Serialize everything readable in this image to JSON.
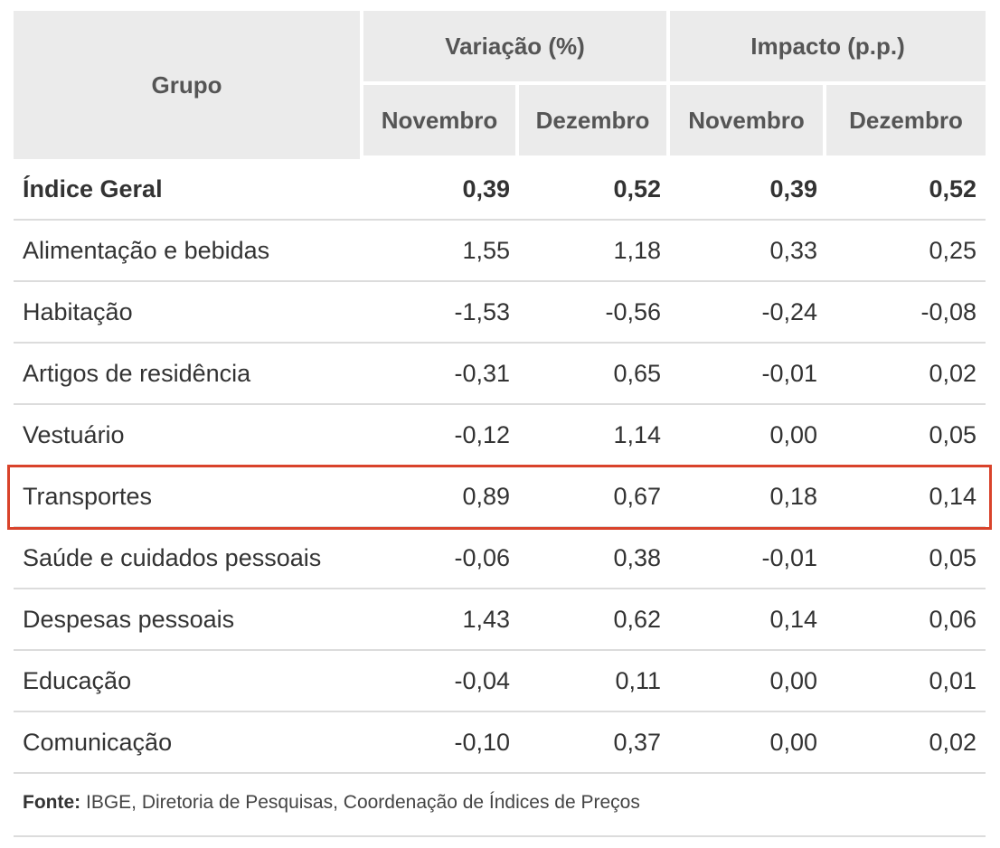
{
  "table": {
    "headers": {
      "group": "Grupo",
      "variation": "Variação (%)",
      "impact": "Impacto (p.p.)",
      "months": [
        "Novembro",
        "Dezembro",
        "Novembro",
        "Dezembro"
      ]
    },
    "rows": [
      {
        "name": "Índice Geral",
        "values": [
          "0,39",
          "0,52",
          "0,39",
          "0,52"
        ],
        "bold": true
      },
      {
        "name": "Alimentação e bebidas",
        "values": [
          "1,55",
          "1,18",
          "0,33",
          "0,25"
        ]
      },
      {
        "name": "Habitação",
        "values": [
          "-1,53",
          "-0,56",
          "-0,24",
          "-0,08"
        ]
      },
      {
        "name": "Artigos de residência",
        "values": [
          "-0,31",
          "0,65",
          "-0,01",
          "0,02"
        ]
      },
      {
        "name": "Vestuário",
        "values": [
          "-0,12",
          "1,14",
          "0,00",
          "0,05"
        ]
      },
      {
        "name": "Transportes",
        "values": [
          "0,89",
          "0,67",
          "0,18",
          "0,14"
        ],
        "highlighted": true
      },
      {
        "name": "Saúde e cuidados pessoais",
        "values": [
          "-0,06",
          "0,38",
          "-0,01",
          "0,05"
        ]
      },
      {
        "name": "Despesas pessoais",
        "values": [
          "1,43",
          "0,62",
          "0,14",
          "0,06"
        ]
      },
      {
        "name": "Educação",
        "values": [
          "-0,04",
          "0,11",
          "0,00",
          "0,01"
        ]
      },
      {
        "name": "Comunicação",
        "values": [
          "-0,10",
          "0,37",
          "0,00",
          "0,02"
        ]
      }
    ]
  },
  "source": {
    "label": "Fonte:",
    "text": " IBGE, Diretoria de Pesquisas, Coordenação de Índices de Preços"
  },
  "colors": {
    "header_bg": "#ebebeb",
    "highlight_border": "#d9432b",
    "row_divider": "#dcdcdc"
  }
}
